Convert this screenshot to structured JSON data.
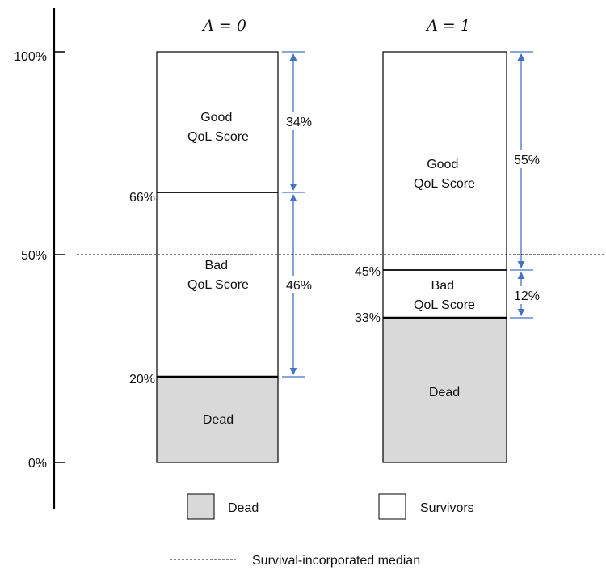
{
  "axis": {
    "ticks": [
      "100%",
      "50%",
      "0%"
    ]
  },
  "median_line_value": 50,
  "columns": [
    {
      "title": "A = 0",
      "dead": 20,
      "bad_top": 66,
      "segment_labels": {
        "good": [
          "Good",
          "QoL Score"
        ],
        "bad": [
          "Bad",
          "QoL Score"
        ],
        "dead": "Dead"
      },
      "boundary_labels": [
        "66%",
        "20%"
      ],
      "spans": [
        {
          "from": 66,
          "to": 100,
          "label": "34%"
        },
        {
          "from": 20,
          "to": 66,
          "label": "46%"
        }
      ]
    },
    {
      "title": "A = 1",
      "dead": 33,
      "bad_top": 45,
      "segment_labels": {
        "good": [
          "Good",
          "QoL Score"
        ],
        "bad": [
          "Bad",
          "QoL Score"
        ],
        "dead": "Dead"
      },
      "boundary_labels": [
        "45%",
        "33%"
      ],
      "spans": [
        {
          "from": 45,
          "to": 100,
          "label": "55%"
        },
        {
          "from": 33,
          "to": 45,
          "label": "12%"
        }
      ]
    }
  ],
  "legend": {
    "dead": "Dead",
    "survivors": "Survivors",
    "median": "Survival-incorporated median"
  },
  "colors": {
    "dead_fill": "#d9d9d9",
    "arrow": "#4472c4",
    "outline": "#000000"
  }
}
